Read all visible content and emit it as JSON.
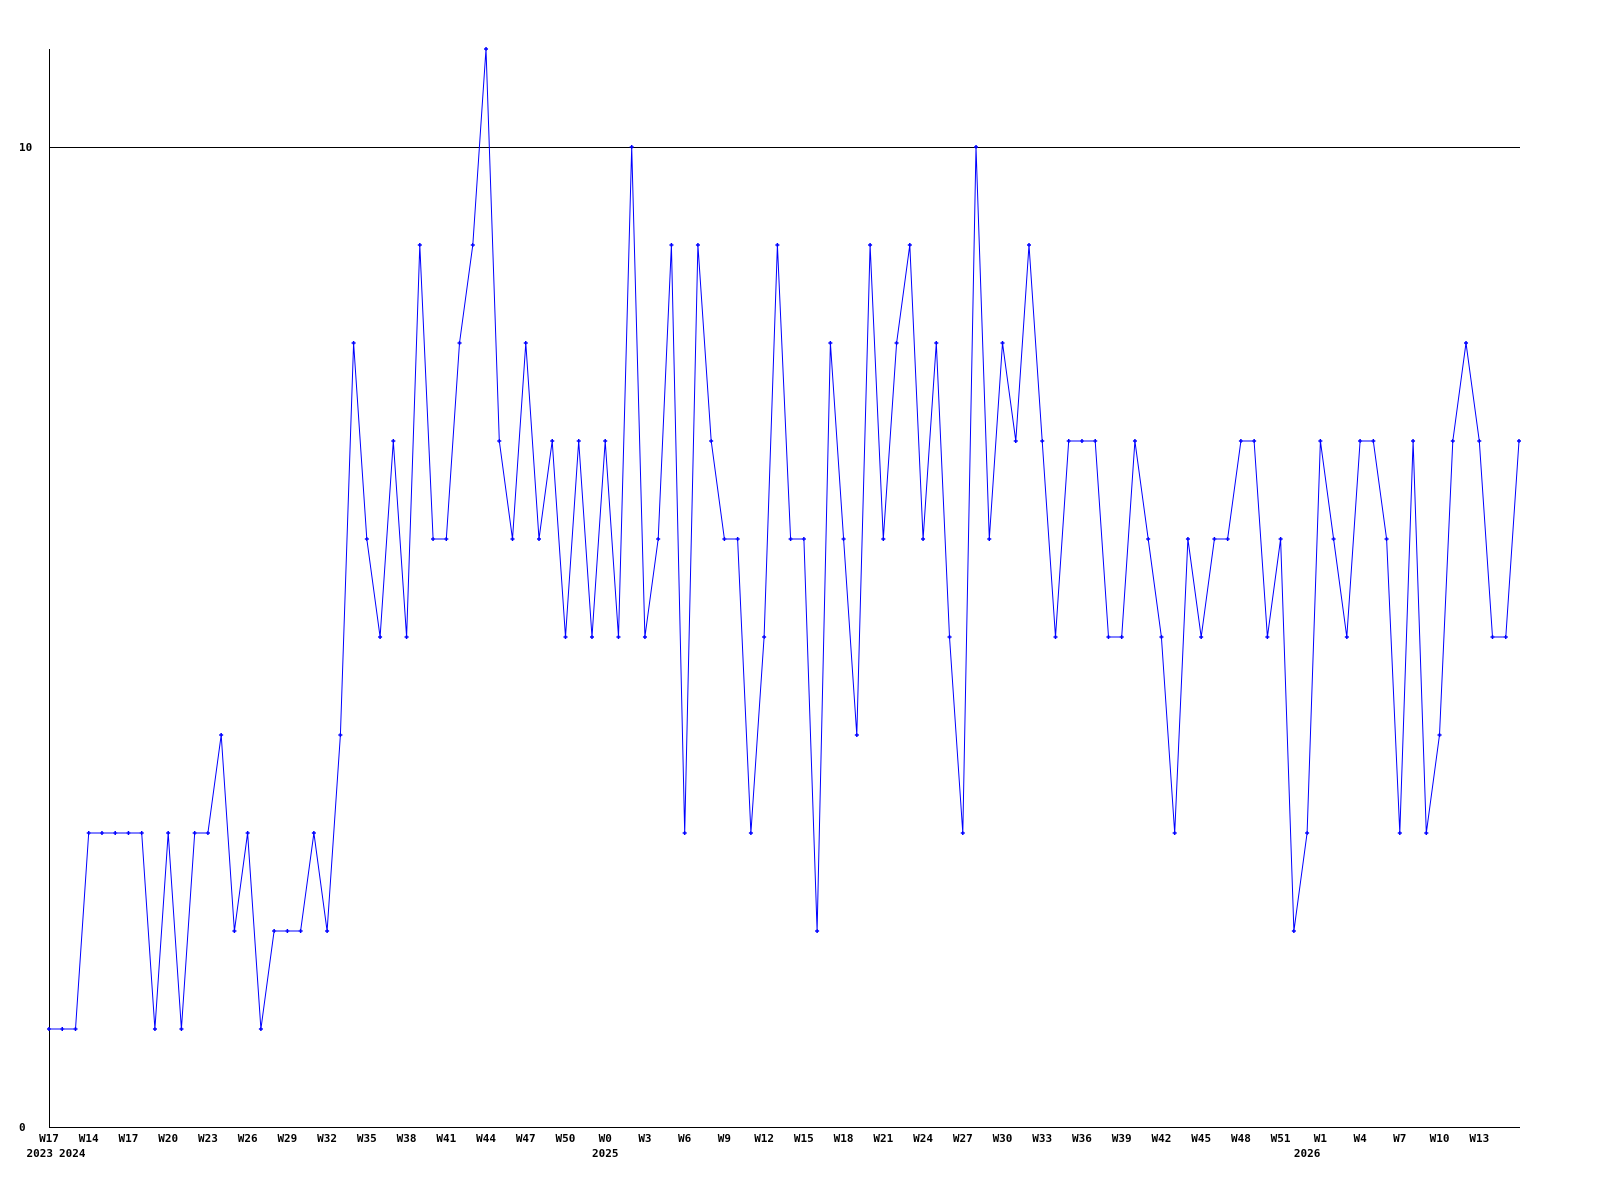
{
  "chart_data": {
    "type": "line",
    "title": "",
    "xlabel": "",
    "ylabel": "",
    "ylim": [
      0,
      11
    ],
    "y_ticks": [
      "0",
      "10"
    ],
    "grid": "horizontal line at 10",
    "line_color": "#0000ff",
    "x_tick_labels": [
      "W17",
      "W14",
      "W17",
      "W20",
      "W23",
      "W26",
      "W29",
      "W32",
      "W35",
      "W38",
      "W41",
      "W44",
      "W47",
      "W50",
      "W0",
      "W3",
      "W6",
      "W9",
      "W12",
      "W15",
      "W18",
      "W21",
      "W24",
      "W27",
      "W30",
      "W33",
      "W36",
      "W39",
      "W42",
      "W45",
      "W48",
      "W51",
      "W1",
      "W4",
      "W7",
      "W10",
      "W13"
    ],
    "year_labels": [
      {
        "label": "2023",
        "at_point": 0
      },
      {
        "label": "2024",
        "at_point": 1
      },
      {
        "label": "2025",
        "at_point": 42
      },
      {
        "label": "2026",
        "at_point": 95
      }
    ],
    "values": [
      1,
      1,
      1,
      3,
      3,
      3,
      3,
      3,
      1,
      3,
      1,
      3,
      3,
      4,
      2,
      3,
      1,
      2,
      2,
      2,
      3,
      2,
      4,
      8,
      6,
      5,
      7,
      5,
      9,
      6,
      6,
      8,
      9,
      11,
      7,
      6,
      8,
      6,
      7,
      5,
      7,
      5,
      7,
      5,
      10,
      5,
      6,
      9,
      3,
      9,
      7,
      6,
      6,
      3,
      5,
      9,
      6,
      6,
      2,
      8,
      6,
      4,
      9,
      6,
      8,
      9,
      6,
      8,
      5,
      3,
      10,
      6,
      8,
      7,
      9,
      7,
      5,
      7,
      7,
      7,
      5,
      5,
      7,
      6,
      5,
      3,
      6,
      5,
      6,
      6,
      7,
      7,
      5,
      6,
      2,
      3,
      7,
      6,
      5,
      7,
      7,
      6,
      3,
      7,
      3,
      4,
      7,
      8,
      7,
      5,
      5,
      7
    ]
  }
}
